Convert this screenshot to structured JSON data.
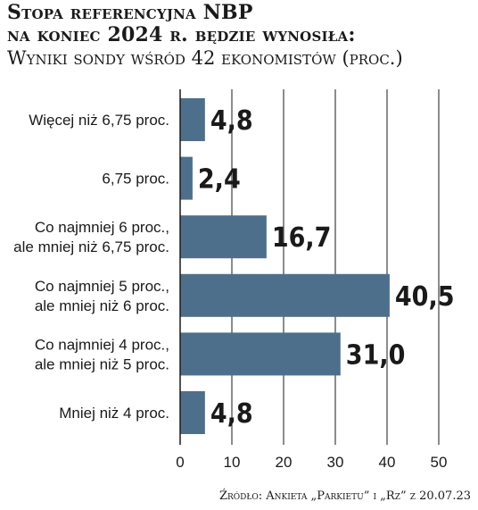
{
  "title": {
    "line1": "Stopa referencyjna NBP",
    "line2": "na koniec 2024 r. będzie wynosiła:",
    "subtitle": "Wyniki sondy wśród 42 ekonomistów (proc.)"
  },
  "source": "Źródło: Ankieta „Parkietu” i „Rz” z 20.07.23",
  "chart_data": {
    "type": "bar",
    "orientation": "horizontal",
    "categories": [
      [
        "Więcej niż 6,75 proc."
      ],
      [
        "6,75 proc."
      ],
      [
        "Co najmniej 6 proc.,",
        "ale mniej niż 6,75 proc."
      ],
      [
        "Co najmniej 5 proc.,",
        "ale mniej niż 6 proc."
      ],
      [
        "Co najmniej 4 proc.,",
        "ale mniej niż 5 proc."
      ],
      [
        "Mniej niż 4 proc."
      ]
    ],
    "values": [
      4.8,
      2.4,
      16.7,
      40.5,
      31.0,
      4.8
    ],
    "value_labels": [
      "4,8",
      "2,4",
      "16,7",
      "40,5",
      "31,0",
      "4,8"
    ],
    "xlim": [
      0,
      50
    ],
    "xticks": [
      0,
      10,
      20,
      30,
      40,
      50
    ],
    "grid": true,
    "bar_color": "#4e6f8c"
  }
}
